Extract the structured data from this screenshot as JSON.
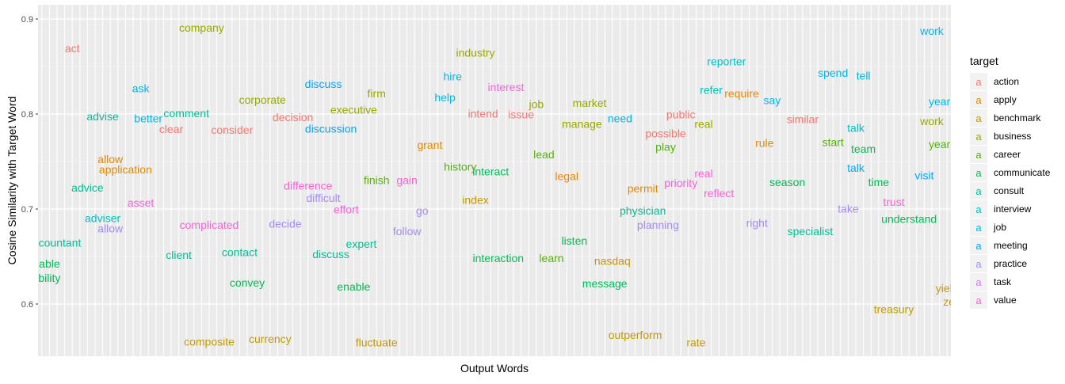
{
  "chart_data": {
    "type": "scatter",
    "title": "",
    "xlabel": "Output Words",
    "ylabel": "Cosine Similarity with Target Word",
    "ylim": [
      0.545,
      0.915
    ],
    "x_categories_count": 120,
    "yticks": [
      0.6,
      0.7,
      0.8,
      0.9
    ],
    "ytick_labels": [
      "0.6",
      "0.7",
      "0.8",
      "0.9"
    ],
    "grid": true,
    "legend": {
      "title": "target",
      "placement": "right",
      "key_glyph": "a",
      "entries": [
        {
          "name": "action",
          "color": "#F8766D"
        },
        {
          "name": "apply",
          "color": "#E38900"
        },
        {
          "name": "benchmark",
          "color": "#C49A00"
        },
        {
          "name": "business",
          "color": "#99A800"
        },
        {
          "name": "career",
          "color": "#53B400"
        },
        {
          "name": "communicate",
          "color": "#00BC56"
        },
        {
          "name": "consult",
          "color": "#00C094"
        },
        {
          "name": "interview",
          "color": "#00BFC4"
        },
        {
          "name": "job",
          "color": "#00B6EB"
        },
        {
          "name": "meeting",
          "color": "#06A4FF"
        },
        {
          "name": "practice",
          "color": "#A58AFF"
        },
        {
          "name": "task",
          "color": "#DF70F8"
        },
        {
          "name": "value",
          "color": "#FB61D7"
        }
      ]
    },
    "points": [
      {
        "label": "act",
        "x": 4,
        "y": 0.869,
        "target": "action"
      },
      {
        "label": "company",
        "x": 21,
        "y": 0.891,
        "target": "business"
      },
      {
        "label": "ask",
        "x": 13,
        "y": 0.827,
        "target": "job"
      },
      {
        "label": "advise",
        "x": 8,
        "y": 0.7975,
        "target": "consult"
      },
      {
        "label": "better",
        "x": 14,
        "y": 0.7955,
        "target": "job"
      },
      {
        "label": "comment",
        "x": 19,
        "y": 0.801,
        "target": "consult"
      },
      {
        "label": "clear",
        "x": 17,
        "y": 0.784,
        "target": "action"
      },
      {
        "label": "consider",
        "x": 25,
        "y": 0.7835,
        "target": "action"
      },
      {
        "label": "corporate",
        "x": 29,
        "y": 0.815,
        "target": "business"
      },
      {
        "label": "decision",
        "x": 33,
        "y": 0.7965,
        "target": "action"
      },
      {
        "label": "discuss",
        "x": 37,
        "y": 0.8315,
        "target": "meeting"
      },
      {
        "label": "discussion",
        "x": 38,
        "y": 0.7845,
        "target": "meeting"
      },
      {
        "label": "executive",
        "x": 41,
        "y": 0.8045,
        "target": "business"
      },
      {
        "label": "firm",
        "x": 44,
        "y": 0.8215,
        "target": "business"
      },
      {
        "label": "allow",
        "x": 9,
        "y": 0.7525,
        "target": "apply"
      },
      {
        "label": "application",
        "x": 11,
        "y": 0.7415,
        "target": "apply"
      },
      {
        "label": "advice",
        "x": 6,
        "y": 0.7225,
        "target": "consult"
      },
      {
        "label": "asset",
        "x": 13,
        "y": 0.7065,
        "target": "value"
      },
      {
        "label": "adviser",
        "x": 8,
        "y": 0.6905,
        "target": "interview"
      },
      {
        "label": "allow",
        "x": 9,
        "y": 0.6795,
        "target": "practice"
      },
      {
        "label": "ccountant",
        "x": 2,
        "y": 0.6645,
        "target": "consult"
      },
      {
        "label": "able",
        "x": 1,
        "y": 0.6425,
        "target": "communicate"
      },
      {
        "label": "bility",
        "x": 1,
        "y": 0.6275,
        "target": "communicate"
      },
      {
        "label": "complicated",
        "x": 22,
        "y": 0.6835,
        "target": "value"
      },
      {
        "label": "client",
        "x": 18,
        "y": 0.6515,
        "target": "consult"
      },
      {
        "label": "contact",
        "x": 26,
        "y": 0.6545,
        "target": "consult"
      },
      {
        "label": "convey",
        "x": 27,
        "y": 0.6225,
        "target": "communicate"
      },
      {
        "label": "decide",
        "x": 32,
        "y": 0.6845,
        "target": "practice"
      },
      {
        "label": "difference",
        "x": 35,
        "y": 0.7245,
        "target": "value"
      },
      {
        "label": "difficult",
        "x": 37,
        "y": 0.7115,
        "target": "practice"
      },
      {
        "label": "effort",
        "x": 40,
        "y": 0.6995,
        "target": "value"
      },
      {
        "label": "finish",
        "x": 44,
        "y": 0.7305,
        "target": "career"
      },
      {
        "label": "expert",
        "x": 42,
        "y": 0.6635,
        "target": "consult"
      },
      {
        "label": "discuss",
        "x": 38,
        "y": 0.6525,
        "target": "consult"
      },
      {
        "label": "enable",
        "x": 41,
        "y": 0.6185,
        "target": "communicate"
      },
      {
        "label": "composite",
        "x": 22,
        "y": 0.5605,
        "target": "benchmark"
      },
      {
        "label": "currency",
        "x": 30,
        "y": 0.5635,
        "target": "benchmark"
      },
      {
        "label": "gain",
        "x": 48,
        "y": 0.7305,
        "target": "value"
      },
      {
        "label": "go",
        "x": 50,
        "y": 0.6985,
        "target": "practice"
      },
      {
        "label": "follow",
        "x": 48,
        "y": 0.6765,
        "target": "practice"
      },
      {
        "label": "fluctuate",
        "x": 44,
        "y": 0.5595,
        "target": "benchmark"
      },
      {
        "label": "industry",
        "x": 57,
        "y": 0.8645,
        "target": "business"
      },
      {
        "label": "hire",
        "x": 54,
        "y": 0.8395,
        "target": "job"
      },
      {
        "label": "help",
        "x": 53,
        "y": 0.8175,
        "target": "job"
      },
      {
        "label": "interest",
        "x": 61,
        "y": 0.8285,
        "target": "value"
      },
      {
        "label": "intend",
        "x": 58,
        "y": 0.8005,
        "target": "action"
      },
      {
        "label": "issue",
        "x": 63,
        "y": 0.7995,
        "target": "action"
      },
      {
        "label": "job",
        "x": 65,
        "y": 0.8105,
        "target": "business"
      },
      {
        "label": "grant",
        "x": 51,
        "y": 0.7675,
        "target": "apply"
      },
      {
        "label": "history",
        "x": 55,
        "y": 0.7445,
        "target": "career"
      },
      {
        "label": "interact",
        "x": 59,
        "y": 0.7395,
        "target": "communicate"
      },
      {
        "label": "lead",
        "x": 66,
        "y": 0.7575,
        "target": "career"
      },
      {
        "label": "legal",
        "x": 69,
        "y": 0.7345,
        "target": "apply"
      },
      {
        "label": "index",
        "x": 57,
        "y": 0.7095,
        "target": "benchmark"
      },
      {
        "label": "interaction",
        "x": 60,
        "y": 0.6485,
        "target": "communicate"
      },
      {
        "label": "learn",
        "x": 67,
        "y": 0.6485,
        "target": "career"
      },
      {
        "label": "listen",
        "x": 70,
        "y": 0.6665,
        "target": "communicate"
      },
      {
        "label": "nasdaq",
        "x": 75,
        "y": 0.6455,
        "target": "benchmark"
      },
      {
        "label": "message",
        "x": 74,
        "y": 0.6215,
        "target": "communicate"
      },
      {
        "label": "outperform",
        "x": 78,
        "y": 0.5675,
        "target": "benchmark"
      },
      {
        "label": "rate",
        "x": 86,
        "y": 0.5595,
        "target": "benchmark"
      },
      {
        "label": "market",
        "x": 72,
        "y": 0.8115,
        "target": "business"
      },
      {
        "label": "manage",
        "x": 71,
        "y": 0.7895,
        "target": "business"
      },
      {
        "label": "need",
        "x": 76,
        "y": 0.7955,
        "target": "job"
      },
      {
        "label": "public",
        "x": 84,
        "y": 0.7995,
        "target": "action"
      },
      {
        "label": "possible",
        "x": 82,
        "y": 0.7795,
        "target": "action"
      },
      {
        "label": "real",
        "x": 87,
        "y": 0.7895,
        "target": "business"
      },
      {
        "label": "play",
        "x": 82,
        "y": 0.7655,
        "target": "career"
      },
      {
        "label": "permit",
        "x": 79,
        "y": 0.7215,
        "target": "apply"
      },
      {
        "label": "priority",
        "x": 84,
        "y": 0.7275,
        "target": "value"
      },
      {
        "label": "real",
        "x": 87,
        "y": 0.7375,
        "target": "value"
      },
      {
        "label": "reflect",
        "x": 89,
        "y": 0.7165,
        "target": "value"
      },
      {
        "label": "physician",
        "x": 79,
        "y": 0.6985,
        "target": "consult"
      },
      {
        "label": "planning",
        "x": 81,
        "y": 0.6835,
        "target": "practice"
      },
      {
        "label": "reporter",
        "x": 90,
        "y": 0.8555,
        "target": "interview"
      },
      {
        "label": "refer",
        "x": 88,
        "y": 0.8255,
        "target": "interview"
      },
      {
        "label": "require",
        "x": 92,
        "y": 0.8215,
        "target": "apply"
      },
      {
        "label": "say",
        "x": 96,
        "y": 0.8145,
        "target": "job"
      },
      {
        "label": "rule",
        "x": 95,
        "y": 0.7695,
        "target": "apply"
      },
      {
        "label": "season",
        "x": 98,
        "y": 0.7285,
        "target": "communicate"
      },
      {
        "label": "right",
        "x": 94,
        "y": 0.6855,
        "target": "practice"
      },
      {
        "label": "specialist",
        "x": 101,
        "y": 0.6765,
        "target": "consult"
      },
      {
        "label": "similar",
        "x": 100,
        "y": 0.7945,
        "target": "action"
      },
      {
        "label": "spend",
        "x": 104,
        "y": 0.8435,
        "target": "job"
      },
      {
        "label": "tell",
        "x": 108,
        "y": 0.8405,
        "target": "job"
      },
      {
        "label": "talk",
        "x": 107,
        "y": 0.7855,
        "target": "interview"
      },
      {
        "label": "start",
        "x": 104,
        "y": 0.7705,
        "target": "career"
      },
      {
        "label": "team",
        "x": 108,
        "y": 0.7635,
        "target": "communicate"
      },
      {
        "label": "talk",
        "x": 107,
        "y": 0.7435,
        "target": "meeting"
      },
      {
        "label": "time",
        "x": 110,
        "y": 0.7285,
        "target": "communicate"
      },
      {
        "label": "visit",
        "x": 116,
        "y": 0.7355,
        "target": "meeting"
      },
      {
        "label": "trust",
        "x": 112,
        "y": 0.7075,
        "target": "value"
      },
      {
        "label": "take",
        "x": 106,
        "y": 0.7005,
        "target": "practice"
      },
      {
        "label": "understand",
        "x": 114,
        "y": 0.6895,
        "target": "communicate"
      },
      {
        "label": "work",
        "x": 117,
        "y": 0.8875,
        "target": "job"
      },
      {
        "label": "year",
        "x": 118,
        "y": 0.8135,
        "target": "job"
      },
      {
        "label": "work",
        "x": 117,
        "y": 0.7925,
        "target": "business"
      },
      {
        "label": "year",
        "x": 118,
        "y": 0.7685,
        "target": "career"
      },
      {
        "label": "treasury",
        "x": 112,
        "y": 0.5945,
        "target": "benchmark"
      },
      {
        "label": "yield",
        "x": 119,
        "y": 0.6165,
        "target": "benchmark"
      },
      {
        "label": "zer",
        "x": 119.5,
        "y": 0.6025,
        "target": "benchmark"
      }
    ]
  }
}
